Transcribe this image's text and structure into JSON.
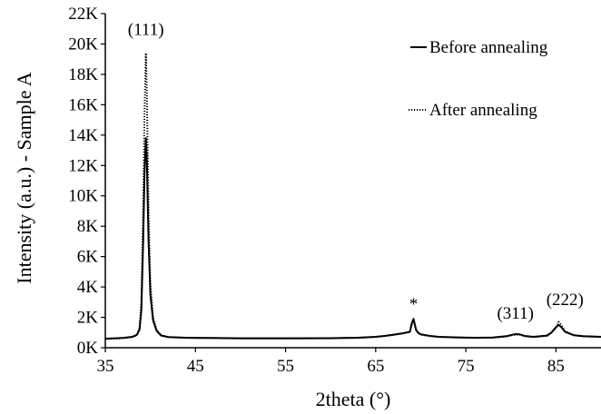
{
  "chart_data": {
    "type": "line",
    "title": "",
    "xlabel": "2theta (°)",
    "ylabel": "Intensity (a.u.) - Sample A",
    "xlim": [
      35,
      90
    ],
    "ylim": [
      0,
      22000
    ],
    "x_ticks": [
      35,
      45,
      55,
      65,
      75,
      85
    ],
    "x_tick_labels": [
      "35",
      "45",
      "55",
      "65",
      "75",
      "85"
    ],
    "y_ticks": [
      0,
      2000,
      4000,
      6000,
      8000,
      10000,
      12000,
      14000,
      16000,
      18000,
      20000,
      22000
    ],
    "y_tick_labels": [
      "0K",
      "2K",
      "4K",
      "6K",
      "8K",
      "10K",
      "12K",
      "14K",
      "16K",
      "18K",
      "20K",
      "22K"
    ],
    "grid": false,
    "legend_position": "top-right",
    "series": [
      {
        "name": "Before annealing",
        "style": "solid",
        "color": "#000000",
        "x": [
          35,
          36,
          37,
          38,
          38.5,
          38.8,
          39.0,
          39.2,
          39.35,
          39.5,
          39.6,
          39.8,
          40.0,
          40.3,
          40.7,
          41.2,
          42,
          43,
          44,
          45,
          47,
          50,
          55,
          60,
          63,
          65,
          66,
          67,
          68,
          68.8,
          69.0,
          69.2,
          69.35,
          69.5,
          69.7,
          70,
          71,
          72,
          74,
          76,
          78,
          79.5,
          80.5,
          81,
          81.5,
          82.5,
          84,
          84.5,
          85,
          85.3,
          85.6,
          86,
          87,
          88,
          89,
          90
        ],
        "y": [
          600,
          620,
          650,
          720,
          850,
          1200,
          2500,
          7000,
          11500,
          13800,
          12500,
          7000,
          3500,
          1800,
          1100,
          800,
          700,
          680,
          660,
          650,
          640,
          620,
          620,
          630,
          660,
          720,
          780,
          860,
          950,
          1050,
          1600,
          1900,
          1500,
          1150,
          1000,
          880,
          780,
          720,
          680,
          660,
          670,
          760,
          900,
          880,
          780,
          720,
          800,
          1000,
          1350,
          1500,
          1350,
          1050,
          820,
          760,
          740,
          720
        ]
      },
      {
        "name": "After annealing",
        "style": "dotted",
        "color": "#000000",
        "x": [
          35,
          36,
          37,
          38,
          38.5,
          38.8,
          39.0,
          39.2,
          39.35,
          39.5,
          39.6,
          39.8,
          40.0,
          40.3,
          40.7,
          41.2,
          42,
          43,
          44,
          45,
          47,
          50,
          55,
          60,
          63,
          65,
          66,
          67,
          68,
          68.8,
          69.0,
          69.2,
          69.35,
          69.5,
          69.7,
          70,
          71,
          72,
          74,
          76,
          78,
          79.5,
          80.5,
          81,
          81.5,
          82.5,
          84,
          84.5,
          85,
          85.3,
          85.6,
          86,
          87,
          88,
          89,
          90
        ],
        "y": [
          580,
          600,
          630,
          700,
          830,
          1300,
          3000,
          9000,
          15500,
          19400,
          17000,
          9000,
          4200,
          2000,
          1150,
          820,
          700,
          670,
          650,
          640,
          630,
          610,
          610,
          620,
          650,
          710,
          770,
          850,
          940,
          1040,
          1550,
          1850,
          1450,
          1120,
          980,
          860,
          770,
          710,
          670,
          650,
          660,
          740,
          860,
          850,
          760,
          700,
          780,
          980,
          1300,
          1700,
          1500,
          1100,
          820,
          750,
          730,
          710
        ]
      }
    ],
    "annotations": [
      {
        "text": "(111)",
        "x": 39.5,
        "y": 20600
      },
      {
        "text": "*",
        "x": 69.2,
        "y": 2500
      },
      {
        "text": "(311)",
        "x": 80.5,
        "y": 1900
      },
      {
        "text": "(222)",
        "x": 86.0,
        "y": 2800
      }
    ]
  }
}
